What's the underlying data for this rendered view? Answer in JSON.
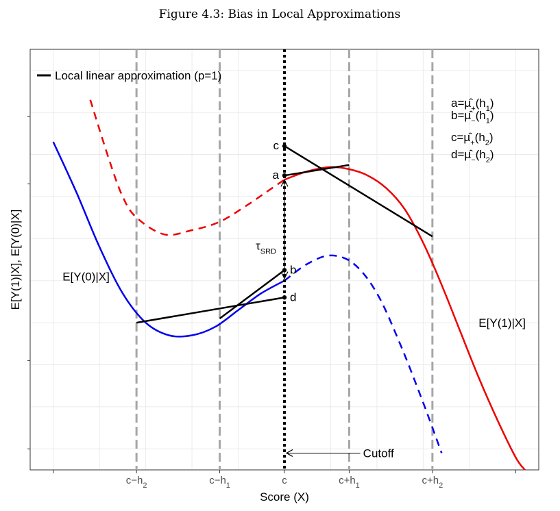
{
  "title": "Figure 4.3: Bias in Local Approximations",
  "chart_data": {
    "type": "line",
    "xlabel": "Score (X)",
    "ylabel": "E[Y(1)|X], E[Y(0)|X]",
    "xlim": [
      -2.75,
      2.75
    ],
    "ylim": [
      0,
      10
    ],
    "grid": true,
    "legend": {
      "label": "Local linear approximation (p=1)",
      "position": "top-left"
    },
    "x_ticks": [
      {
        "x": -1.6,
        "text": "c−h",
        "sub": "2"
      },
      {
        "x": -0.7,
        "text": "c−h",
        "sub": "1"
      },
      {
        "x": 0,
        "text": "c",
        "sub": ""
      },
      {
        "x": 0.7,
        "text": "c+h",
        "sub": "1"
      },
      {
        "x": 1.6,
        "text": "c+h",
        "sub": "2"
      }
    ],
    "series": [
      {
        "name": "E[Y(0)|X]",
        "color": "#0000ee",
        "solid": {
          "x": [
            -2.5,
            -2.25,
            -2.0,
            -1.75,
            -1.5,
            -1.25,
            -1.0,
            -0.75,
            -0.5,
            -0.25,
            0.0
          ],
          "y": [
            7.8,
            6.6,
            5.3,
            4.2,
            3.5,
            3.2,
            3.2,
            3.4,
            3.8,
            4.2,
            4.5
          ]
        },
        "dashed": {
          "x": [
            0.0,
            0.25,
            0.5,
            0.75,
            1.0,
            1.25,
            1.5,
            1.7
          ],
          "y": [
            4.5,
            4.9,
            5.1,
            4.9,
            4.2,
            3.0,
            1.6,
            0.4
          ]
        }
      },
      {
        "name": "E[Y(1)|X]",
        "color": "#ee0000",
        "dashed": {
          "x": [
            -2.1,
            -1.9,
            -1.75,
            -1.6,
            -1.3,
            -1.0,
            -0.7,
            -0.4,
            -0.2,
            0.0
          ],
          "y": [
            8.8,
            7.4,
            6.5,
            6.0,
            5.6,
            5.7,
            5.9,
            6.3,
            6.6,
            6.9
          ]
        },
        "solid": {
          "x": [
            0.0,
            0.25,
            0.5,
            0.7,
            0.9,
            1.1,
            1.3,
            1.5,
            1.7,
            1.9,
            2.1,
            2.3,
            2.5,
            2.6
          ],
          "y": [
            6.9,
            7.1,
            7.2,
            7.15,
            7.0,
            6.7,
            6.2,
            5.4,
            4.4,
            3.3,
            2.2,
            1.2,
            0.3,
            0.0
          ]
        }
      }
    ],
    "approximations": [
      {
        "x": [
          -1.6,
          0.0
        ],
        "y": [
          3.5,
          4.1
        ]
      },
      {
        "x": [
          -0.7,
          0.0
        ],
        "y": [
          3.6,
          4.75
        ]
      },
      {
        "x": [
          0.0,
          0.7
        ],
        "y": [
          7.0,
          7.25
        ]
      },
      {
        "x": [
          0.0,
          1.6
        ],
        "y": [
          7.7,
          5.55
        ]
      }
    ],
    "cutoff": {
      "x": 0,
      "label": "Cutoff",
      "label_x": 0.85,
      "y": 0.4
    },
    "points": [
      {
        "label": "c",
        "x": 0,
        "y": 7.7
      },
      {
        "label": "a",
        "x": 0,
        "y": 7.0
      },
      {
        "label": "b",
        "x": 0,
        "y": 4.75
      },
      {
        "label": "d",
        "x": 0,
        "y": 4.1
      }
    ],
    "tau": {
      "label": "τ",
      "sub": "SRD",
      "y_top": 6.9,
      "y_bottom": 4.55
    },
    "labels_series": [
      {
        "text": "E[Y(0)|X]",
        "x": -2.4,
        "y": 4.5,
        "color": "#0000ee"
      },
      {
        "text": "E[Y(1)|X]",
        "x": 2.1,
        "y": 3.4,
        "color": "#ee0000"
      }
    ],
    "definitions": [
      {
        "lhs": "a=µ̂",
        "sub": "+",
        "rhs": "(h",
        "rsub": "1",
        "tail": ")"
      },
      {
        "lhs": "b=µ̂",
        "sub": "−",
        "rhs": "(h",
        "rsub": "1",
        "tail": ")"
      },
      {
        "lhs": "c=µ̂",
        "sub": "+",
        "rhs": "(h",
        "rsub": "2",
        "tail": ")"
      },
      {
        "lhs": "d=µ̂",
        "sub": "−",
        "rhs": "(h",
        "rsub": "2",
        "tail": ")"
      }
    ]
  }
}
